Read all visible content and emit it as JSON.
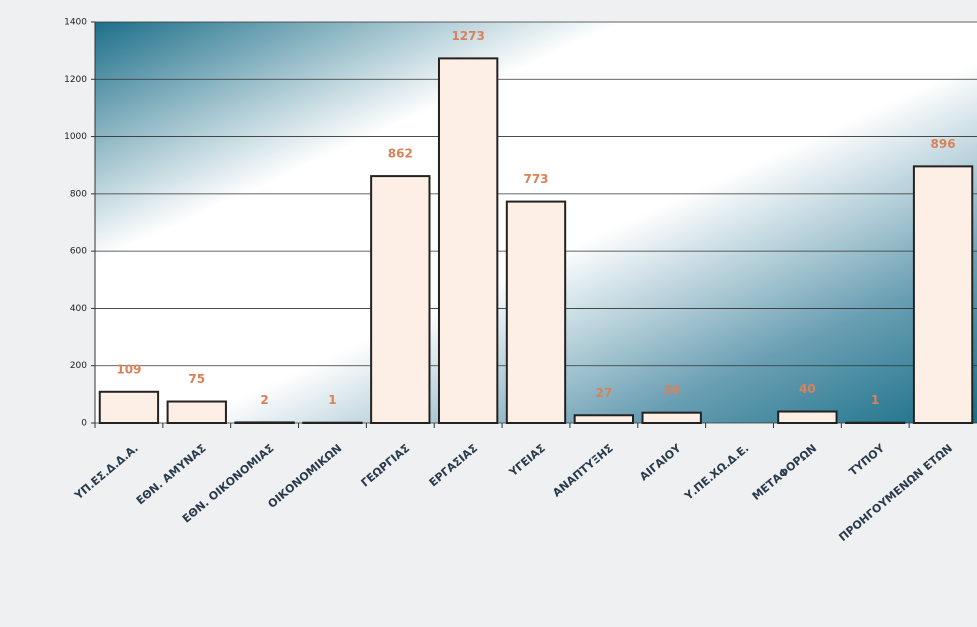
{
  "chart_data": {
    "type": "bar",
    "categories": [
      "ΥΠ.ΕΣ.Δ.Δ.Α.",
      "ΕΘΝ. ΑΜΥΝΑΣ",
      "ΕΘΝ. ΟΙΚΟΝΟΜΙΑΣ",
      "ΟΙΚΟΝΟΜΙΚΩΝ",
      "ΓΕΩΡΓΙΑΣ",
      "ΕΡΓΑΣΙΑΣ",
      "ΥΓΕΙΑΣ",
      "ΑΝΑΠΤΥΞΗΣ",
      "ΑΙΓΑΙΟΥ",
      "Υ.ΠΕ.ΧΩ.Δ.Ε.",
      "ΜΕΤΑΦΟΡΩΝ",
      "ΤΥΠΟΥ",
      "ΠΡΟΗΓΟΥΜΕΝΩΝ ΕΤΩΝ"
    ],
    "values": [
      109,
      75,
      2,
      1,
      862,
      1273,
      773,
      27,
      36,
      null,
      40,
      1,
      896
    ],
    "color": "#fdeee6",
    "ylim": [
      0,
      1400
    ],
    "yticks": [
      0,
      200,
      400,
      600,
      800,
      1000,
      1200,
      1400
    ],
    "grid": true
  }
}
